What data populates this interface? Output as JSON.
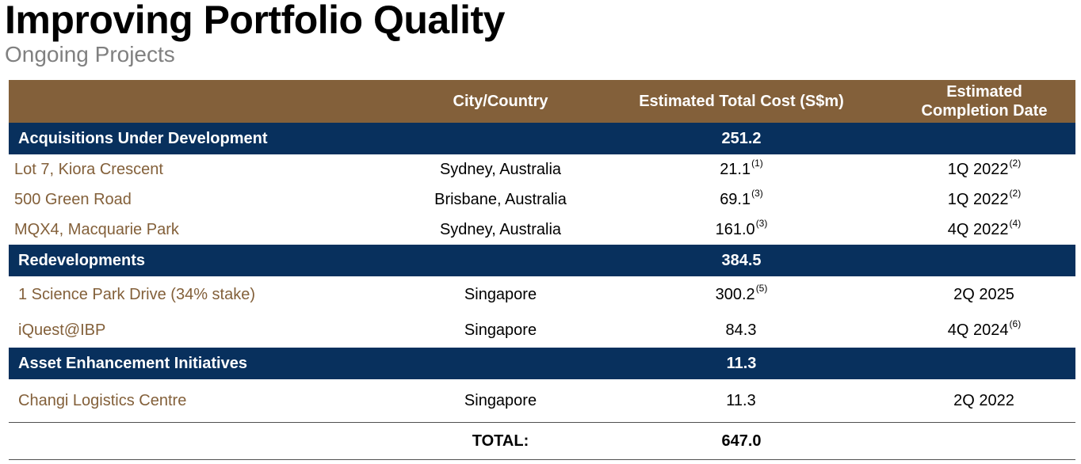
{
  "title": "Improving Portfolio Quality",
  "subtitle": "Ongoing Projects",
  "colors": {
    "header_bg": "#83603a",
    "section_bg": "#08305d",
    "project_text": "#83603a"
  },
  "table": {
    "headers": [
      "",
      "City/Country",
      "Estimated Total Cost (S$m)",
      "Estimated Completion Date"
    ],
    "sections": [
      {
        "label": "Acquisitions Under Development",
        "total": "251.2",
        "rows": [
          {
            "project": "Lot 7, Kiora Crescent",
            "city": "Sydney, Australia",
            "cost": "21.1",
            "cost_note": "(1)",
            "date": "1Q 2022",
            "date_note": "(2)"
          },
          {
            "project": "500 Green Road",
            "city": "Brisbane, Australia",
            "cost": "69.1",
            "cost_note": "(3)",
            "date": "1Q 2022",
            "date_note": "(2)"
          },
          {
            "project": "MQX4, Macquarie Park",
            "city": "Sydney, Australia",
            "cost": "161.0",
            "cost_note": "(3)",
            "date": "4Q 2022",
            "date_note": "(4)"
          }
        ]
      },
      {
        "label": "Redevelopments",
        "total": "384.5",
        "rows": [
          {
            "project": "1 Science Park Drive (34% stake)",
            "city": "Singapore",
            "cost": "300.2",
            "cost_note": "(5)",
            "date": "2Q 2025",
            "date_note": ""
          },
          {
            "project": "iQuest@IBP",
            "city": "Singapore",
            "cost": "84.3",
            "cost_note": "",
            "date": "4Q 2024",
            "date_note": "(6)"
          }
        ]
      },
      {
        "label": "Asset Enhancement Initiatives",
        "total": "11.3",
        "rows": [
          {
            "project": "Changi Logistics Centre",
            "city": "Singapore",
            "cost": "11.3",
            "cost_note": "",
            "date": "2Q 2022",
            "date_note": ""
          }
        ]
      }
    ],
    "total_label": "TOTAL:",
    "total_value": "647.0"
  }
}
